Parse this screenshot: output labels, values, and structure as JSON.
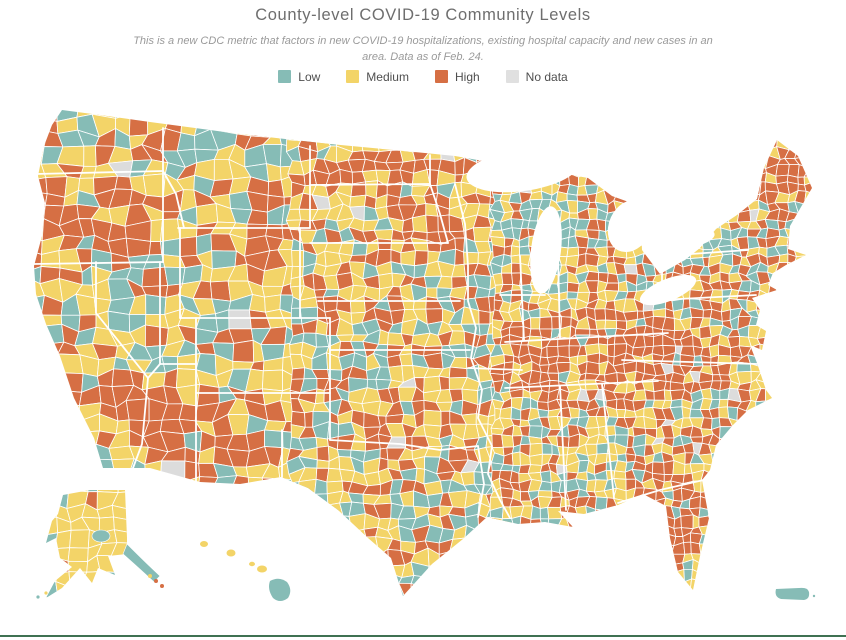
{
  "header": {
    "title": "County-level COVID-19 Community Levels",
    "subtitle_line1": "This is a new CDC metric that factors in new COVID-19 hospitalizations, existing hospital capacity and new cases in an",
    "subtitle_line2": "area. Data as of Feb. 24."
  },
  "legend": {
    "items": [
      {
        "label": "Low",
        "color": "#86bcb6"
      },
      {
        "label": "Medium",
        "color": "#f3d468"
      },
      {
        "label": "High",
        "color": "#d66f44"
      },
      {
        "label": "No data",
        "color": "#e0e0e0"
      }
    ]
  },
  "map": {
    "type": "choropleth",
    "region": "United States counties",
    "insets": [
      "Alaska",
      "Hawaii",
      "Puerto Rico"
    ],
    "levels": [
      "Low",
      "Medium",
      "High",
      "No data"
    ],
    "palette": {
      "low": "#86bcb6",
      "medium": "#f3d468",
      "high": "#d66f44",
      "no_data": "#dcdcdc",
      "border": "#ffffff"
    },
    "approx_share": {
      "low": 0.25,
      "medium": 0.4,
      "high": 0.34,
      "no_data": 0.01
    },
    "high_cluster_share": {
      "low": 0.05,
      "medium": 0.22,
      "high": 0.72,
      "no_data": 0.01
    },
    "low_cluster_share": {
      "low": 0.55,
      "medium": 0.33,
      "high": 0.11,
      "no_data": 0.01
    },
    "alaska_share": {
      "low": 0.12,
      "medium": 0.85,
      "high": 0.02,
      "no_data": 0.01
    }
  },
  "footer": {
    "rule_color": "#3f7152"
  }
}
